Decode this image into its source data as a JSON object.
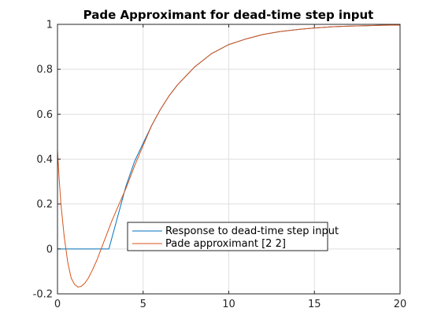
{
  "chart_data": {
    "type": "line",
    "title": "Pade Approximant for dead-time step input",
    "xlabel": "",
    "ylabel": "",
    "xlim": [
      0,
      20
    ],
    "ylim": [
      -0.2,
      1
    ],
    "x_ticks": [
      0,
      5,
      10,
      15,
      20
    ],
    "y_ticks": [
      -0.2,
      0,
      0.2,
      0.4,
      0.6,
      0.8,
      1
    ],
    "x_tick_labels": [
      "0",
      "5",
      "10",
      "15",
      "20"
    ],
    "y_tick_labels": [
      "-0.2",
      "0",
      "0.2",
      "0.4",
      "0.6",
      "0.8",
      "1"
    ],
    "grid": true,
    "legend_position": "lower-center",
    "series": [
      {
        "name": "Response to dead-time step input",
        "color": "#0072bd",
        "x": [
          0,
          1,
          2,
          2.9,
          3,
          3.5,
          4,
          4.5,
          5,
          5.5,
          6,
          6.5,
          7,
          7.5,
          8,
          8.5,
          9,
          9.5,
          10,
          11,
          12,
          13,
          14,
          15,
          16,
          17,
          18,
          19,
          20
        ],
        "y": [
          0,
          0,
          0,
          0,
          0,
          0.14,
          0.28,
          0.39,
          0.47,
          0.55,
          0.62,
          0.68,
          0.73,
          0.77,
          0.81,
          0.84,
          0.87,
          0.89,
          0.91,
          0.935,
          0.955,
          0.968,
          0.977,
          0.984,
          0.989,
          0.992,
          0.994,
          0.996,
          0.997
        ]
      },
      {
        "name": "Pade approximant [2 2]",
        "color": "#d95319",
        "x": [
          0,
          0.1,
          0.2,
          0.4,
          0.6,
          0.8,
          1.0,
          1.2,
          1.4,
          1.6,
          1.8,
          2.0,
          2.3,
          2.6,
          2.9,
          3.2,
          3.6,
          4.0,
          4.5,
          5,
          5.5,
          6,
          6.5,
          7,
          7.5,
          8,
          8.5,
          9,
          9.5,
          10,
          11,
          12,
          13,
          14,
          15,
          16,
          17,
          18,
          19,
          20
        ],
        "y": [
          0.44,
          0.31,
          0.2,
          0.05,
          -0.06,
          -0.13,
          -0.158,
          -0.17,
          -0.166,
          -0.152,
          -0.13,
          -0.1,
          -0.05,
          0.01,
          0.07,
          0.13,
          0.2,
          0.27,
          0.37,
          0.46,
          0.55,
          0.62,
          0.68,
          0.73,
          0.77,
          0.81,
          0.84,
          0.87,
          0.89,
          0.91,
          0.935,
          0.955,
          0.968,
          0.977,
          0.984,
          0.989,
          0.992,
          0.994,
          0.996,
          0.997
        ]
      }
    ]
  }
}
